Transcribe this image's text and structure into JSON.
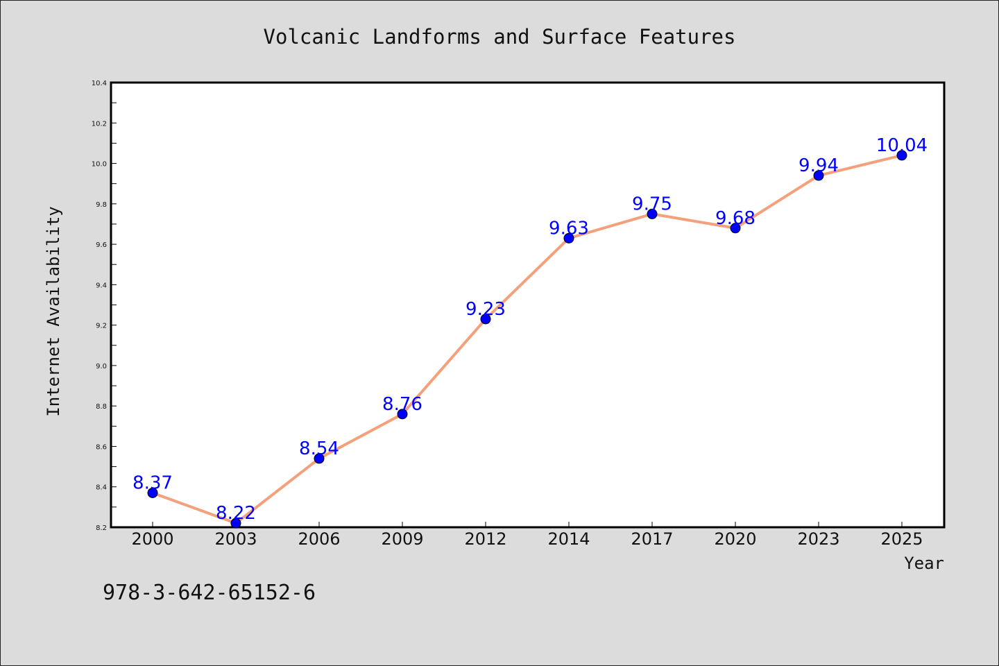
{
  "chart_data": {
    "type": "line",
    "title": "Volcanic Landforms and Surface Features",
    "xlabel": "Year",
    "ylabel": "Internet Availability",
    "categories": [
      "2000",
      "2003",
      "2006",
      "2009",
      "2012",
      "2014",
      "2017",
      "2020",
      "2023",
      "2025"
    ],
    "series": [
      {
        "values": [
          8.37,
          8.22,
          8.54,
          8.76,
          9.23,
          9.63,
          9.75,
          9.68,
          9.94,
          10.04
        ]
      }
    ],
    "data_labels": [
      "8.37",
      "8.22",
      "8.54",
      "8.76",
      "9.23",
      "9.63",
      "9.75",
      "9.68",
      "9.94",
      "10.04"
    ],
    "yticks": [
      "8.2",
      "8.4",
      "8.6",
      "8.8",
      "9.0",
      "9.2",
      "9.4",
      "9.6",
      "9.8",
      "10.0",
      "10.2",
      "10.4"
    ],
    "ylim": [
      8.2,
      10.4
    ],
    "grid": false,
    "line_color": "#f4a07a",
    "marker_color": "#0000ff",
    "label_color": "#0000ff",
    "background_color": "#dcdcdc",
    "plot_background": "#ffffff"
  },
  "footer_text": "978-3-642-65152-6"
}
